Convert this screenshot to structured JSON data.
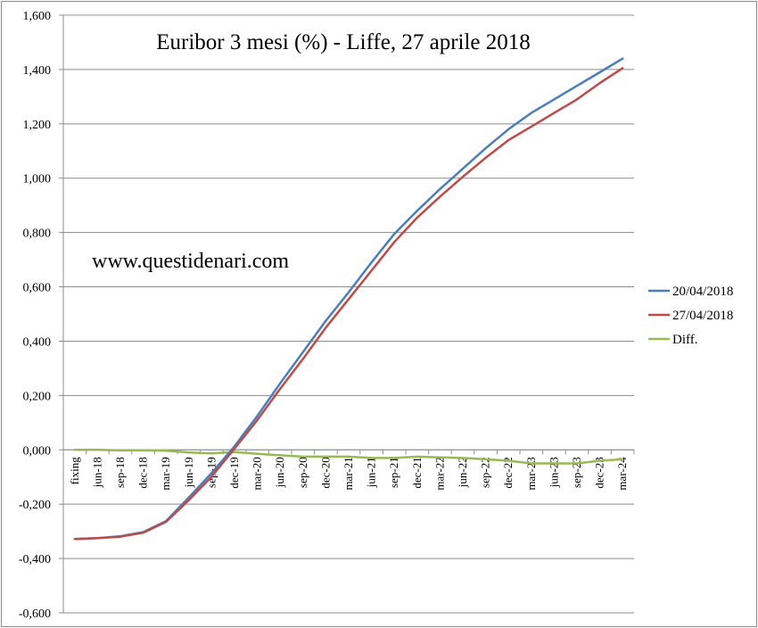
{
  "chart_data": {
    "type": "line",
    "title": "Euribor 3 mesi (%) - Liffe, 27 aprile 2018",
    "annotation": "www.questidenari.com",
    "categories": [
      "fixing",
      "jun-18",
      "sep-18",
      "dec-18",
      "mar-19",
      "jun-19",
      "sep-19",
      "dec-19",
      "mar-20",
      "jun-20",
      "sep-20",
      "dec-20",
      "mar-21",
      "jun-21",
      "sep-21",
      "dec-21",
      "mar-22",
      "jun-22",
      "sep-22",
      "dec-22",
      "mar-23",
      "jun-23",
      "sep-23",
      "dec-23",
      "mar-24"
    ],
    "ylim": [
      -0.6,
      1.6
    ],
    "yticks": [
      -0.6,
      -0.4,
      -0.2,
      0.0,
      0.2,
      0.4,
      0.6,
      0.8,
      1.0,
      1.2,
      1.4,
      1.6
    ],
    "ytick_labels": [
      "-0,600",
      "-0,400",
      "-0,200",
      "0,000",
      "0,200",
      "0,400",
      "0,600",
      "0,800",
      "1,000",
      "1,200",
      "1,400",
      "1,600"
    ],
    "grid": true,
    "legend_position": "right",
    "series": [
      {
        "name": "20/04/2018",
        "color": "#4a7ebb",
        "values": [
          -0.328,
          -0.325,
          -0.318,
          -0.303,
          -0.262,
          -0.175,
          -0.085,
          0.013,
          0.125,
          0.245,
          0.36,
          0.475,
          0.58,
          0.69,
          0.795,
          0.88,
          0.96,
          1.035,
          1.11,
          1.18,
          1.24,
          1.29,
          1.34,
          1.39,
          1.44
        ]
      },
      {
        "name": "27/04/2018",
        "color": "#be4b48",
        "values": [
          -0.328,
          -0.325,
          -0.32,
          -0.305,
          -0.265,
          -0.185,
          -0.098,
          0.005,
          0.11,
          0.225,
          0.335,
          0.45,
          0.555,
          0.66,
          0.765,
          0.855,
          0.932,
          1.005,
          1.075,
          1.14,
          1.19,
          1.24,
          1.29,
          1.35,
          1.405
        ]
      },
      {
        "name": "Diff.",
        "color": "#98b954",
        "values": [
          0.0,
          0.0,
          -0.002,
          -0.002,
          -0.003,
          -0.01,
          -0.013,
          -0.008,
          -0.015,
          -0.02,
          -0.025,
          -0.025,
          -0.025,
          -0.03,
          -0.03,
          -0.025,
          -0.028,
          -0.03,
          -0.035,
          -0.04,
          -0.05,
          -0.05,
          -0.05,
          -0.04,
          -0.035
        ]
      }
    ]
  }
}
